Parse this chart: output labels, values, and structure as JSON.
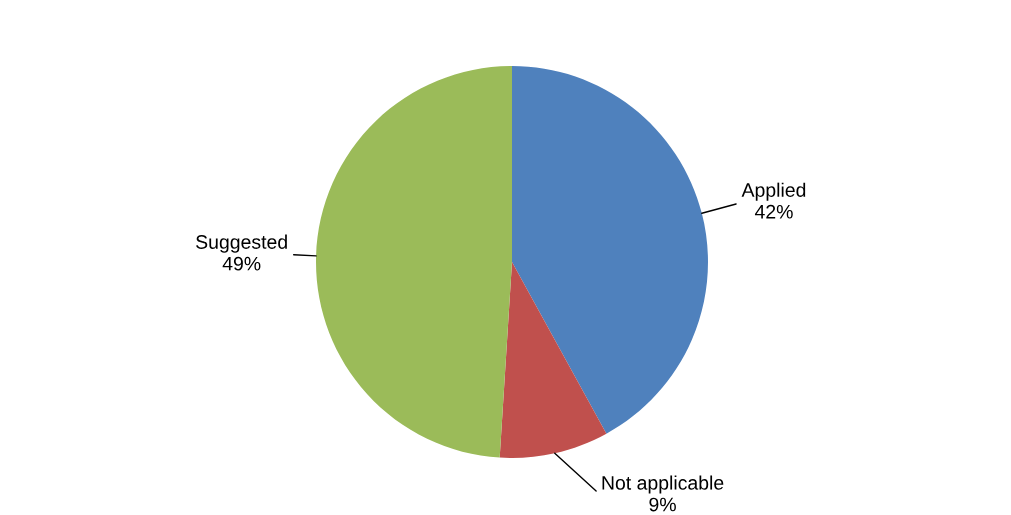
{
  "chart_data": {
    "type": "pie",
    "categories": [
      "Applied",
      "Not applicable",
      "Suggested"
    ],
    "values": [
      42,
      9,
      49
    ],
    "value_labels": [
      "42%",
      "9%",
      "49%"
    ],
    "colors": [
      "#4f81bd",
      "#c0504d",
      "#9bbb59"
    ],
    "legend": false
  }
}
